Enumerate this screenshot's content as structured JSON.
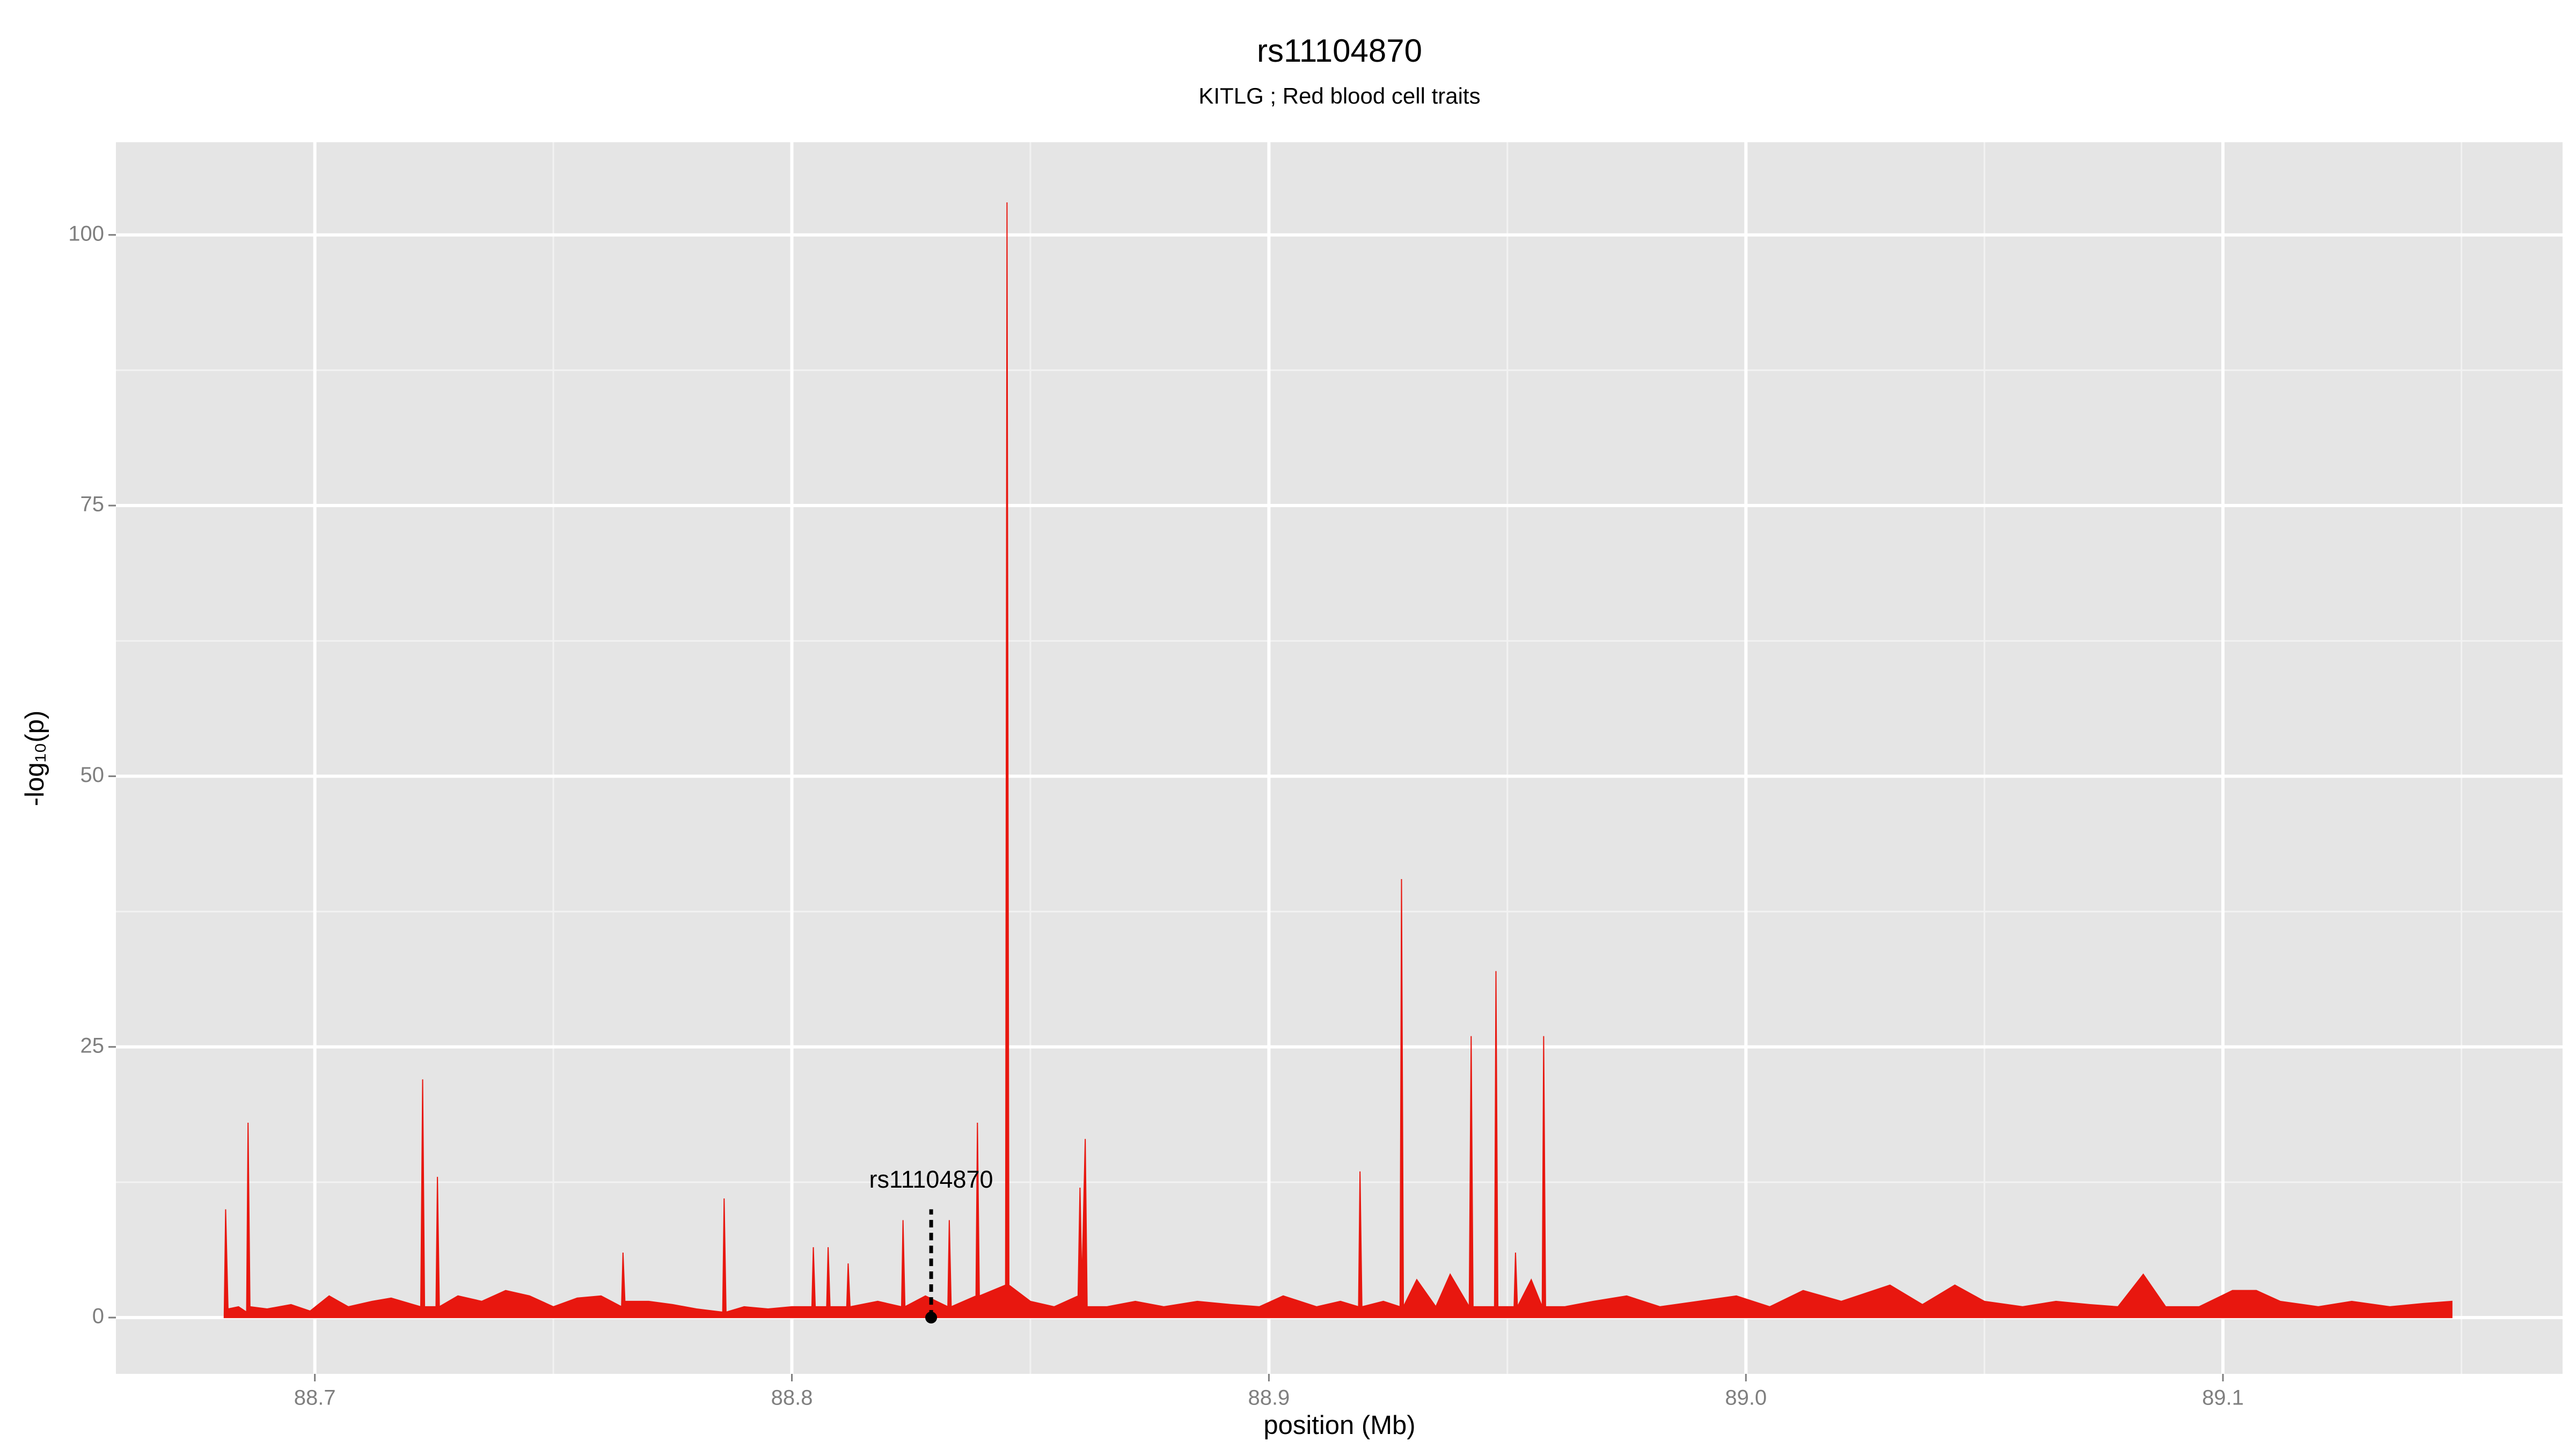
{
  "chart_data": {
    "type": "area",
    "title": "rs11104870",
    "subtitle": "KITLG ; Red blood cell traits",
    "x_label": "position (Mb)",
    "y_label": "-log₁₀(p)",
    "color": "#e8170f",
    "xlim": [
      88.6583,
      89.1712
    ],
    "ylim": [
      -5.2,
      108.56
    ],
    "xticks": [
      88.7,
      88.8,
      88.9,
      {
        "value": 89,
        "label": "89.0"
      },
      89.1
    ],
    "yticks": [
      0,
      25,
      50,
      75,
      100
    ],
    "grid": true,
    "minor_grid": true,
    "annotation": {
      "label": "rs11104870",
      "x": 88.8292,
      "y": 10
    },
    "x": [
      88.681,
      88.6813,
      88.6818,
      88.684,
      88.6857,
      88.686,
      88.6864,
      88.69,
      88.695,
      88.699,
      88.703,
      88.707,
      88.712,
      88.716,
      88.7222,
      88.7226,
      88.723,
      88.7254,
      88.7257,
      88.7261,
      88.73,
      88.735,
      88.74,
      88.745,
      88.75,
      88.755,
      88.76,
      88.7643,
      88.7646,
      88.765,
      88.77,
      88.775,
      88.78,
      88.7855,
      88.7858,
      88.7862,
      88.79,
      88.795,
      88.8,
      88.8042,
      88.8045,
      88.8049,
      88.8073,
      88.8076,
      88.808,
      88.8115,
      88.8118,
      88.8122,
      88.818,
      88.823,
      88.8233,
      88.8237,
      88.828,
      88.8327,
      88.833,
      88.8334,
      88.8386,
      88.8389,
      88.8393,
      88.8448,
      88.8451,
      88.8455,
      88.85,
      88.855,
      88.86,
      88.8604,
      88.8608,
      88.8615,
      88.8619,
      88.866,
      88.872,
      88.878,
      88.885,
      88.892,
      88.898,
      88.903,
      88.91,
      88.915,
      88.9188,
      88.9191,
      88.9195,
      88.924,
      88.9275,
      88.9278,
      88.9282,
      88.931,
      88.935,
      88.938,
      88.942,
      88.9424,
      88.9428,
      88.9473,
      88.9476,
      88.948,
      88.9514,
      88.9517,
      88.9521,
      88.955,
      88.9573,
      88.9576,
      88.958,
      88.962,
      88.968,
      88.975,
      88.982,
      88.99,
      88.998,
      89.005,
      89.012,
      89.02,
      89.0302,
      89.037,
      89.0438,
      89.05,
      89.058,
      89.065,
      89.072,
      89.078,
      89.0833,
      89.088,
      89.095,
      89.102,
      89.107,
      89.112,
      89.12,
      89.127,
      89.135,
      89.142,
      89.148
    ],
    "values": [
      0,
      10,
      0.8,
      1,
      0.5,
      18,
      1,
      0.8,
      1.2,
      0.6,
      2,
      1,
      1.5,
      1.8,
      1,
      22,
      1,
      1,
      13,
      1,
      2,
      1.5,
      2.5,
      2,
      1,
      1.8,
      2,
      1,
      6,
      1.5,
      1.5,
      1.2,
      0.8,
      0.5,
      11,
      0.5,
      1,
      0.8,
      1,
      1,
      6.5,
      1,
      1,
      6.5,
      1,
      1,
      5,
      1,
      1.5,
      1,
      9,
      1,
      2,
      1,
      9,
      1,
      2,
      18,
      2,
      3,
      103,
      3,
      1.5,
      1,
      2,
      12,
      3,
      16.5,
      1,
      1,
      1.5,
      1,
      1.5,
      1.2,
      1,
      2,
      1,
      1.5,
      1,
      13.5,
      1,
      1.5,
      1,
      40.5,
      1,
      3.5,
      1,
      4,
      1,
      26,
      1,
      1,
      32,
      1,
      1,
      6,
      1,
      3.5,
      1,
      26,
      1,
      1,
      1.5,
      2,
      1,
      1.5,
      2,
      1,
      2.5,
      1.5,
      3,
      1.2,
      3,
      1.5,
      1,
      1.5,
      1.2,
      1,
      4,
      1,
      1,
      2.5,
      2.5,
      1.5,
      1,
      1.5,
      1,
      1.3,
      1.5
    ]
  }
}
